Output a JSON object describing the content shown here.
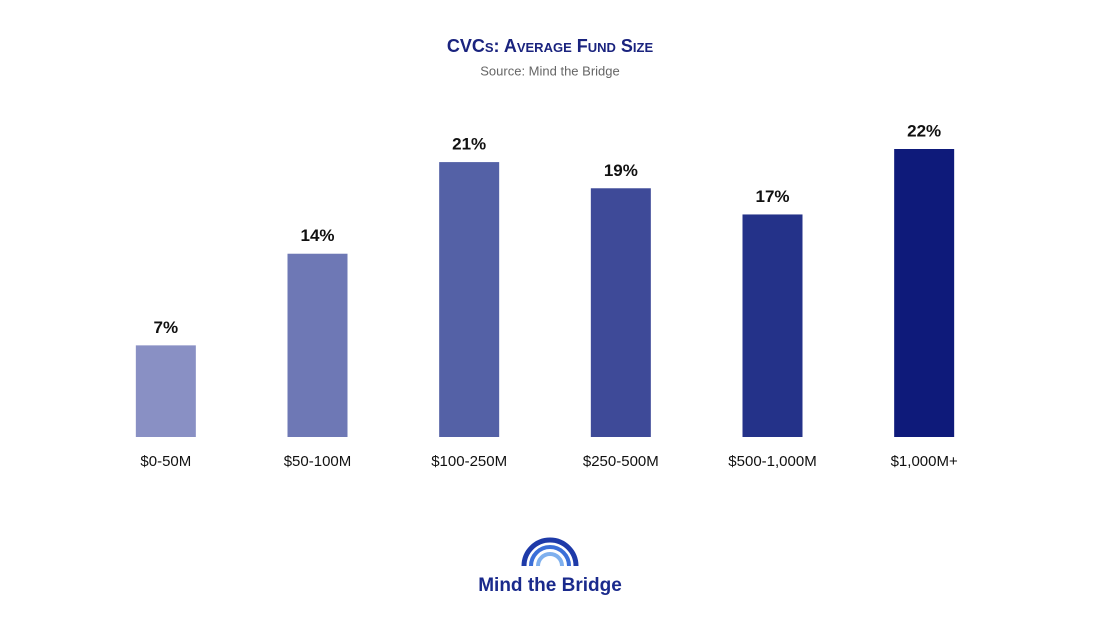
{
  "chart_data": {
    "type": "bar",
    "title": "CVCs: Average Fund Size",
    "subtitle": "Source: Mind the Bridge",
    "categories": [
      "$0-50M",
      "$50-100M",
      "$100-250M",
      "$250-500M",
      "$500-1,000M",
      "$1,000M+"
    ],
    "values": [
      7,
      14,
      21,
      19,
      17,
      22
    ],
    "value_labels": [
      "7%",
      "14%",
      "21%",
      "19%",
      "17%",
      "22%"
    ],
    "colors": [
      "#8990c4",
      "#6e78b5",
      "#5461a6",
      "#3e4a98",
      "#243289",
      "#0e1a7a"
    ]
  },
  "logo": {
    "text": "Mind the Bridge"
  }
}
